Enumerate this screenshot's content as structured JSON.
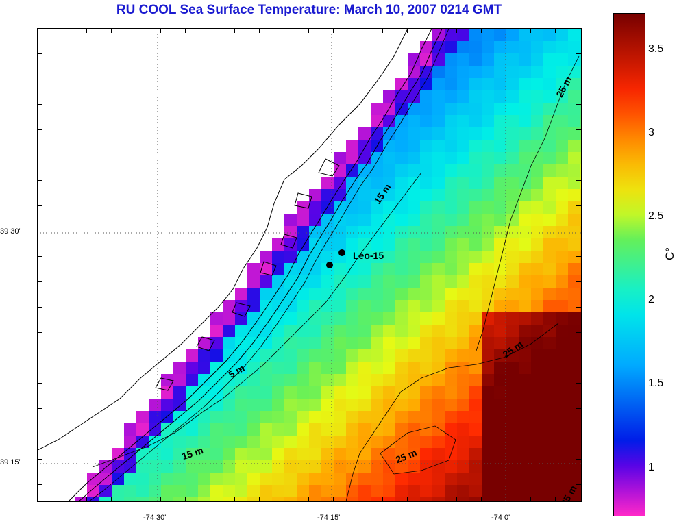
{
  "title": "RU COOL  Sea Surface Temperature:  March 10, 2007 0214 GMT",
  "axes": {
    "y_ticks": [
      {
        "label": "39 30'",
        "value": 39.5
      },
      {
        "label": "39 15'",
        "value": 39.25
      }
    ],
    "x_ticks": [
      {
        "label": "-74 30'",
        "value": -74.5
      },
      {
        "label": "-74 15'",
        "value": -74.25
      },
      {
        "label": "-74 0'",
        "value": -74.0
      }
    ]
  },
  "colorbar": {
    "unit": "C°",
    "min": 0.72,
    "max": 3.72,
    "ticks": [
      "1",
      "1.5",
      "2",
      "2.5",
      "3",
      "3.5"
    ],
    "tick_values": [
      1,
      1.5,
      2,
      2.5,
      3,
      3.5
    ]
  },
  "station": {
    "label": "Leo-15"
  },
  "contour_labels": [
    "5 m",
    "15 m",
    "15 m",
    "25 m",
    "25 m",
    "25 m",
    "25 m"
  ],
  "colors": {
    "title": "#1a1ad0",
    "land": "#ffffff",
    "coast": "#000000"
  }
}
